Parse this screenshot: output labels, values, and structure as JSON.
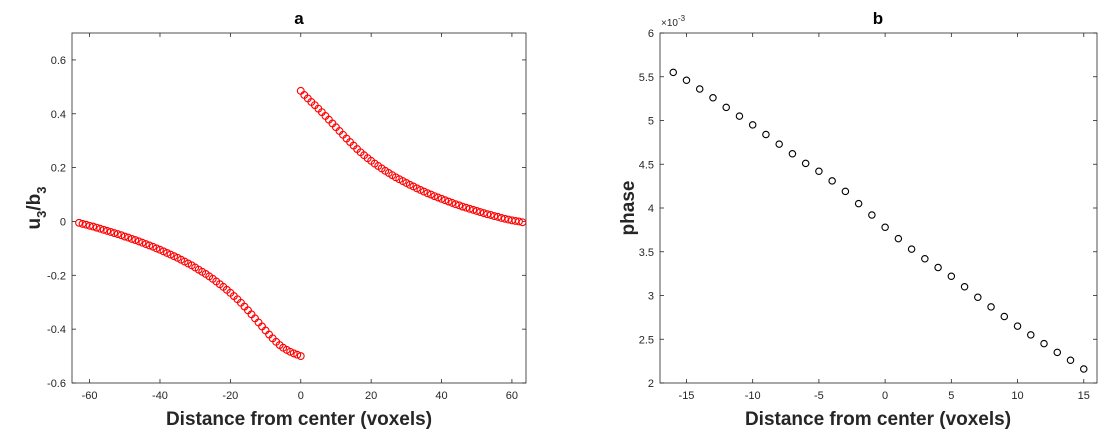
{
  "chart_data": [
    {
      "type": "scatter",
      "title": "a",
      "xlabel": "Distance from center (voxels)",
      "ylabel_main": "u",
      "ylabel_sub1": "3",
      "ylabel_mid": "/b",
      "ylabel_sub2": "3",
      "xlim": [
        -65,
        64
      ],
      "ylim": [
        -0.6,
        0.7
      ],
      "xticks": [
        -60,
        -40,
        -20,
        0,
        20,
        40,
        60
      ],
      "xtick_labels": [
        "-60",
        "-40",
        "-20",
        "0",
        "20",
        "40",
        "60"
      ],
      "yticks": [
        -0.6,
        -0.4,
        -0.2,
        0,
        0.2,
        0.4,
        0.6
      ],
      "ytick_labels": [
        "-0.6",
        "-0.4",
        "-0.2",
        "0",
        "0.2",
        "0.4",
        "0.6"
      ],
      "marker": "circle-open",
      "marker_color": "#ff0000",
      "series": [
        {
          "x": [
            -63,
            -62,
            -61,
            -60,
            -59,
            -58,
            -57,
            -56,
            -55,
            -54,
            -53,
            -52,
            -51,
            -50,
            -49,
            -48,
            -47,
            -46,
            -45,
            -44,
            -43,
            -42,
            -41,
            -40,
            -39,
            -38,
            -37,
            -36,
            -35,
            -34,
            -33,
            -32,
            -31,
            -30,
            -29,
            -28,
            -27,
            -26,
            -25,
            -24,
            -23,
            -22,
            -21,
            -20,
            -19,
            -18,
            -17,
            -16,
            -15,
            -14,
            -13,
            -12,
            -11,
            -10,
            -9,
            -8,
            -7,
            -6,
            -5,
            -4,
            -3,
            -2,
            -1,
            0
          ],
          "y": [
            -0.005,
            -0.009,
            -0.012,
            -0.016,
            -0.019,
            -0.023,
            -0.027,
            -0.031,
            -0.035,
            -0.039,
            -0.043,
            -0.047,
            -0.051,
            -0.056,
            -0.06,
            -0.065,
            -0.069,
            -0.074,
            -0.079,
            -0.084,
            -0.089,
            -0.094,
            -0.1,
            -0.105,
            -0.111,
            -0.117,
            -0.123,
            -0.129,
            -0.135,
            -0.142,
            -0.149,
            -0.156,
            -0.163,
            -0.171,
            -0.179,
            -0.187,
            -0.195,
            -0.204,
            -0.213,
            -0.223,
            -0.233,
            -0.243,
            -0.254,
            -0.265,
            -0.277,
            -0.289,
            -0.302,
            -0.316,
            -0.33,
            -0.345,
            -0.36,
            -0.375,
            -0.39,
            -0.405,
            -0.42,
            -0.434,
            -0.447,
            -0.459,
            -0.469,
            -0.477,
            -0.484,
            -0.49,
            -0.495,
            -0.5
          ]
        },
        {
          "x": [
            0,
            1,
            2,
            3,
            4,
            5,
            6,
            7,
            8,
            9,
            10,
            11,
            12,
            13,
            14,
            15,
            16,
            17,
            18,
            19,
            20,
            21,
            22,
            23,
            24,
            25,
            26,
            27,
            28,
            29,
            30,
            31,
            32,
            33,
            34,
            35,
            36,
            37,
            38,
            39,
            40,
            41,
            42,
            43,
            44,
            45,
            46,
            47,
            48,
            49,
            50,
            51,
            52,
            53,
            54,
            55,
            56,
            57,
            58,
            59,
            60,
            61,
            62,
            63
          ],
          "y": [
            0.485,
            0.47,
            0.457,
            0.444,
            0.432,
            0.419,
            0.406,
            0.392,
            0.378,
            0.364,
            0.35,
            0.336,
            0.322,
            0.308,
            0.295,
            0.282,
            0.269,
            0.257,
            0.246,
            0.235,
            0.225,
            0.215,
            0.206,
            0.197,
            0.188,
            0.18,
            0.172,
            0.164,
            0.157,
            0.15,
            0.143,
            0.136,
            0.13,
            0.123,
            0.117,
            0.111,
            0.105,
            0.1,
            0.094,
            0.089,
            0.084,
            0.079,
            0.074,
            0.069,
            0.064,
            0.06,
            0.055,
            0.051,
            0.047,
            0.043,
            0.039,
            0.035,
            0.031,
            0.027,
            0.024,
            0.02,
            0.017,
            0.013,
            0.01,
            0.007,
            0.004,
            0.002,
            0.0,
            -0.003
          ]
        }
      ]
    },
    {
      "type": "scatter",
      "title": "b",
      "xlabel": "Distance from center (voxels)",
      "ylabel": "phase",
      "multiplier_base": "×10",
      "multiplier_exp": "-3",
      "xlim": [
        -17,
        16
      ],
      "ylim": [
        2,
        6
      ],
      "xticks": [
        -15,
        -10,
        -5,
        0,
        5,
        10,
        15
      ],
      "xtick_labels": [
        "-15",
        "-10",
        "-5",
        "0",
        "5",
        "10",
        "15"
      ],
      "yticks": [
        2,
        2.5,
        3,
        3.5,
        4,
        4.5,
        5,
        5.5,
        6
      ],
      "ytick_labels": [
        "2",
        "2.5",
        "3",
        "3.5",
        "4",
        "4.5",
        "5",
        "5.5",
        "6"
      ],
      "marker": "circle-open",
      "marker_color": "#000000",
      "series": [
        {
          "x": [
            -16,
            -15,
            -14,
            -13,
            -12,
            -11,
            -10,
            -9,
            -8,
            -7,
            -6,
            -5,
            -4,
            -3,
            -2,
            -1,
            0,
            1,
            2,
            3,
            4,
            5,
            6,
            7,
            8,
            9,
            10,
            11,
            12,
            13,
            14,
            15
          ],
          "y": [
            5.55,
            5.46,
            5.36,
            5.26,
            5.15,
            5.05,
            4.95,
            4.84,
            4.73,
            4.62,
            4.51,
            4.42,
            4.31,
            4.19,
            4.05,
            3.92,
            3.78,
            3.65,
            3.53,
            3.42,
            3.32,
            3.22,
            3.1,
            2.98,
            2.87,
            2.76,
            2.65,
            2.55,
            2.45,
            2.35,
            2.26,
            2.16
          ]
        }
      ]
    }
  ]
}
